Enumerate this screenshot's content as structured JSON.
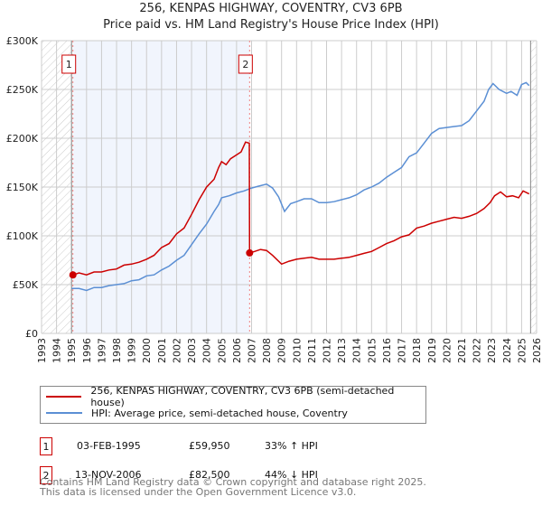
{
  "title": "256, KENPAS HIGHWAY, COVENTRY, CV3 6PB",
  "subtitle": "Price paid vs. HM Land Registry's House Price Index (HPI)",
  "chart_data": {
    "type": "line",
    "title": "256, KENPAS HIGHWAY, COVENTRY, CV3 6PB",
    "subtitle": "Price paid vs. HM Land Registry's House Price Index (HPI)",
    "xlim": [
      1993,
      2026
    ],
    "ylim": [
      0,
      300000
    ],
    "x_ticks": [
      "1993",
      "1994",
      "1995",
      "1996",
      "1997",
      "1998",
      "1999",
      "2000",
      "2001",
      "2002",
      "2003",
      "2004",
      "2005",
      "2006",
      "2007",
      "2008",
      "2009",
      "2010",
      "2011",
      "2012",
      "2013",
      "2014",
      "2015",
      "2016",
      "2017",
      "2018",
      "2019",
      "2020",
      "2021",
      "2022",
      "2023",
      "2024",
      "2025",
      "2026"
    ],
    "y_ticks": [
      {
        "v": 0,
        "label": "£0"
      },
      {
        "v": 50000,
        "label": "£50K"
      },
      {
        "v": 100000,
        "label": "£100K"
      },
      {
        "v": 150000,
        "label": "£150K"
      },
      {
        "v": 200000,
        "label": "£200K"
      },
      {
        "v": 250000,
        "label": "£250K"
      },
      {
        "v": 300000,
        "label": "£300K"
      }
    ],
    "grid": true,
    "series": [
      {
        "name": "256, KENPAS HIGHWAY, COVENTRY, CV3 6PB (semi-detached house)",
        "color": "#cc0000",
        "x": [
          1995.09,
          1995.5,
          1996,
          1996.5,
          1997,
          1997.5,
          1998,
          1998.5,
          1999,
          1999.5,
          2000,
          2000.5,
          2001,
          2001.5,
          2002,
          2002.5,
          2003,
          2003.5,
          2004,
          2004.5,
          2004.8,
          2005,
          2005.3,
          2005.6,
          2006,
          2006.3,
          2006.6,
          2006.85,
          2006.87,
          2007.2,
          2007.6,
          2008,
          2008.4,
          2009,
          2009.5,
          2010,
          2010.5,
          2011,
          2011.5,
          2012,
          2012.5,
          2013,
          2013.5,
          2014,
          2014.5,
          2015,
          2015.5,
          2016,
          2016.5,
          2017,
          2017.5,
          2018,
          2018.5,
          2019,
          2019.5,
          2020,
          2020.5,
          2021,
          2021.5,
          2022,
          2022.5,
          2022.9,
          2023.2,
          2023.6,
          2024,
          2024.4,
          2024.8,
          2025.1,
          2025.5
        ],
        "y": [
          59950,
          62000,
          60000,
          63000,
          63000,
          65000,
          66000,
          70000,
          71000,
          73000,
          76000,
          80000,
          88000,
          92000,
          102000,
          108000,
          122000,
          137000,
          150000,
          158000,
          170000,
          176000,
          173000,
          179000,
          183000,
          186000,
          196000,
          195000,
          82500,
          84000,
          86000,
          85000,
          80000,
          71000,
          74000,
          76000,
          77000,
          78000,
          76000,
          76000,
          76000,
          77000,
          78000,
          80000,
          82000,
          84000,
          88000,
          92000,
          95000,
          99000,
          101000,
          108000,
          110000,
          113000,
          115000,
          117000,
          119000,
          118000,
          120000,
          123000,
          128000,
          134000,
          141000,
          145000,
          140000,
          141000,
          139000,
          146000,
          143000
        ]
      },
      {
        "name": "HPI: Average price, semi-detached house, Coventry",
        "color": "#5b8fd4",
        "x": [
          1995,
          1995.5,
          1996,
          1996.5,
          1997,
          1997.5,
          1998,
          1998.5,
          1999,
          1999.5,
          2000,
          2000.5,
          2001,
          2001.5,
          2002,
          2002.5,
          2003,
          2003.5,
          2004,
          2004.5,
          2004.8,
          2005,
          2005.5,
          2006,
          2006.5,
          2007,
          2007.5,
          2008,
          2008.4,
          2008.8,
          2009.2,
          2009.6,
          2010,
          2010.5,
          2011,
          2011.5,
          2012,
          2012.5,
          2013,
          2013.5,
          2014,
          2014.5,
          2015,
          2015.5,
          2016,
          2016.5,
          2017,
          2017.5,
          2018,
          2018.5,
          2019,
          2019.5,
          2020,
          2020.5,
          2021,
          2021.5,
          2022,
          2022.5,
          2022.8,
          2023.1,
          2023.5,
          2024,
          2024.3,
          2024.7,
          2025,
          2025.3,
          2025.5
        ],
        "y": [
          46000,
          46000,
          44000,
          47000,
          47000,
          49000,
          50000,
          51000,
          54000,
          55000,
          59000,
          60000,
          65000,
          69000,
          75000,
          80000,
          91000,
          102000,
          112000,
          125000,
          132000,
          139000,
          141000,
          144000,
          146000,
          149000,
          151000,
          153000,
          149000,
          140000,
          125000,
          133000,
          135000,
          138000,
          138000,
          134000,
          134000,
          135000,
          137000,
          139000,
          142000,
          147000,
          150000,
          154000,
          160000,
          165000,
          170000,
          181000,
          185000,
          195000,
          205000,
          210000,
          211000,
          212000,
          213000,
          218000,
          228000,
          238000,
          250000,
          256000,
          250000,
          246000,
          248000,
          244000,
          255000,
          257000,
          254000
        ]
      }
    ],
    "sales": [
      {
        "label": "1",
        "x": 1995.09,
        "y": 59950
      },
      {
        "label": "2",
        "x": 2006.87,
        "y": 82500
      }
    ],
    "hatched_ranges": [
      [
        1993,
        1995
      ],
      [
        2025.6,
        2026
      ]
    ],
    "shaded_range": [
      1995.09,
      2006.87
    ]
  },
  "legend": {
    "entries": [
      "256, KENPAS HIGHWAY, COVENTRY, CV3 6PB (semi-detached house)",
      "HPI: Average price, semi-detached house, Coventry"
    ]
  },
  "sales_table": [
    {
      "num": "1",
      "date": "03-FEB-1995",
      "price": "£59,950",
      "hpi": "33% ↑ HPI"
    },
    {
      "num": "2",
      "date": "13-NOV-2006",
      "price": "£82,500",
      "hpi": "44% ↓ HPI"
    }
  ],
  "footer": {
    "line1": "Contains HM Land Registry data © Crown copyright and database right 2025.",
    "line2": "This data is licensed under the Open Government Licence v3.0."
  }
}
